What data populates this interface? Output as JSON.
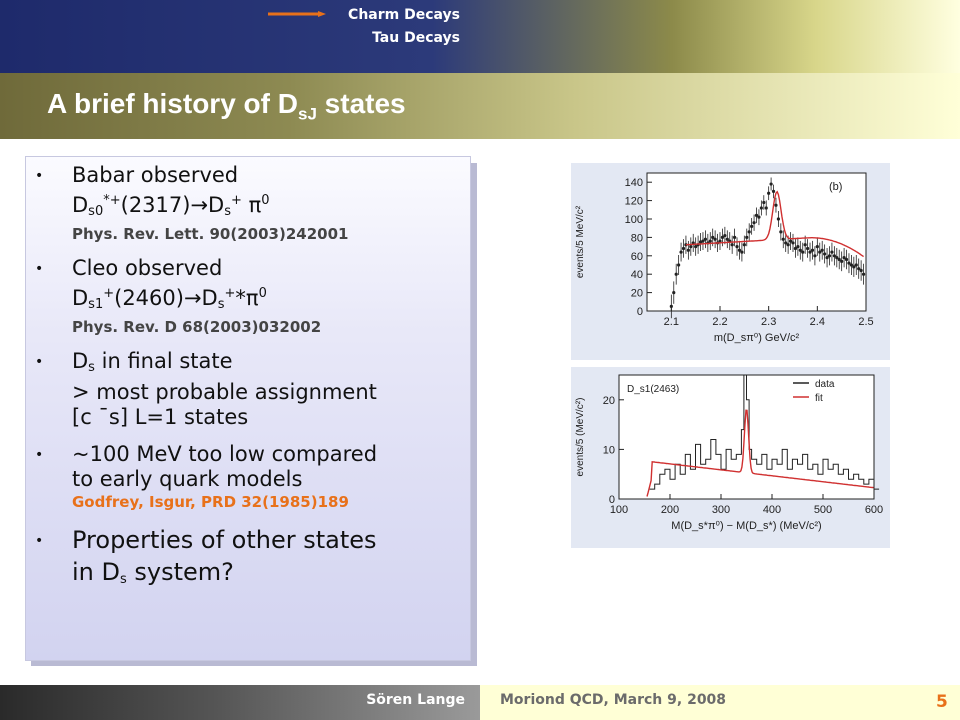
{
  "nav": {
    "items": [
      "Charm Decays",
      "Tau Decays"
    ],
    "arrow_color": "#e8711a"
  },
  "title": {
    "main": "A brief history of D",
    "sub": "sJ",
    "suffix": " states"
  },
  "bullets": [
    {
      "l1": "Babar observed",
      "l2": "D",
      "l2_sub": "s0",
      "l2_sup": "*+",
      "l2_tail": "(2317)→D",
      "l2_sub2": "s",
      "l2_sup2": "+",
      "l2_tail2": " π",
      "l2_sup3": "0",
      "ref": "Phys. Rev. Lett. 90(2003)242001"
    },
    {
      "l1": "Cleo observed",
      "l2": "D",
      "l2_sub": "s1",
      "l2_sup": "+",
      "l2_tail": "(2460)→D",
      "l2_sub2": "s",
      "l2_sup2": "+",
      "l2_tail2": "*π",
      "l2_sup3": "0",
      "ref": "Phys. Rev. D 68(2003)032002"
    },
    {
      "l1a": "D",
      "l1_sub": "s",
      "l1b": " in final state",
      "l2": "> most probable assignment",
      "l3": "[c ¯s]  L=1 states"
    },
    {
      "l1": "~100 MeV too low compared",
      "l2": "to early quark models",
      "ref": "Godfrey, Isgur, PRD 32(1985)189"
    },
    {
      "l1": "Properties of other states",
      "l2a": "in D",
      "l2_sub": "s",
      "l2b": " system?"
    }
  ],
  "chart_data": [
    {
      "type": "scatter",
      "panel_label": "(b)",
      "xlabel": "m(D_sπ⁰) GeV/c²",
      "ylabel": "events/5 MeV/c²",
      "xlim": [
        2.05,
        2.5
      ],
      "ylim": [
        0,
        150
      ],
      "xticks": [
        "2.1",
        "2.2",
        "2.3",
        "2.4",
        "2.5"
      ],
      "yticks": [
        "0",
        "20",
        "40",
        "60",
        "80",
        "100",
        "120",
        "140"
      ],
      "series": [
        {
          "x": [
            2.1,
            2.105,
            2.11,
            2.115,
            2.12,
            2.125,
            2.13,
            2.135,
            2.14,
            2.145,
            2.15,
            2.155,
            2.16,
            2.165,
            2.17,
            2.175,
            2.18,
            2.185,
            2.19,
            2.195,
            2.2,
            2.205,
            2.21,
            2.215,
            2.22,
            2.225,
            2.23,
            2.235,
            2.24,
            2.245,
            2.25,
            2.255,
            2.26,
            2.265,
            2.27,
            2.275,
            2.28,
            2.285,
            2.29,
            2.295,
            2.3,
            2.305,
            2.31,
            2.315,
            2.32,
            2.325,
            2.33,
            2.335,
            2.34,
            2.345,
            2.35,
            2.355,
            2.36,
            2.365,
            2.37,
            2.375,
            2.38,
            2.385,
            2.39,
            2.395,
            2.4,
            2.405,
            2.41,
            2.415,
            2.42,
            2.425,
            2.43,
            2.435,
            2.44,
            2.445,
            2.45,
            2.455,
            2.46,
            2.465,
            2.47,
            2.475,
            2.48,
            2.485,
            2.49,
            2.495
          ],
          "y": [
            5,
            20,
            40,
            50,
            64,
            68,
            72,
            66,
            70,
            74,
            70,
            72,
            75,
            76,
            78,
            74,
            76,
            80,
            78,
            74,
            76,
            80,
            82,
            78,
            76,
            72,
            80,
            70,
            66,
            64,
            72,
            80,
            86,
            92,
            96,
            104,
            102,
            112,
            118,
            112,
            128,
            138,
            130,
            115,
            100,
            86,
            78,
            74,
            72,
            76,
            74,
            68,
            70,
            66,
            64,
            72,
            68,
            64,
            66,
            60,
            70,
            64,
            66,
            62,
            58,
            60,
            64,
            60,
            58,
            56,
            54,
            58,
            56,
            52,
            50,
            48,
            50,
            46,
            44,
            40
          ]
        }
      ],
      "fit_name": ""
    },
    {
      "type": "line",
      "panel_label": "D_s1(2463)",
      "xlabel": "M(D_s*π⁰) − M(D_s*) (MeV/c²)",
      "ylabel": "events/5 (MeV/c²)",
      "xlim": [
        100,
        600
      ],
      "ylim": [
        0,
        25
      ],
      "xticks": [
        "100",
        "200",
        "300",
        "400",
        "500",
        "600"
      ],
      "yticks": [
        "0",
        "10",
        "20"
      ],
      "legend": [
        "data",
        "fit"
      ],
      "legend_colors": [
        "#222222",
        "#d03030"
      ],
      "legend_position": "top-right",
      "series": [
        {
          "name": "data",
          "x": [
            160,
            170,
            180,
            190,
            200,
            210,
            220,
            230,
            240,
            250,
            260,
            270,
            280,
            290,
            300,
            310,
            320,
            330,
            340,
            345,
            350,
            355,
            360,
            370,
            380,
            390,
            400,
            410,
            420,
            430,
            440,
            450,
            460,
            470,
            480,
            490,
            500,
            510,
            520,
            530,
            540,
            550,
            560,
            570,
            580,
            590,
            600
          ],
          "y": [
            2,
            3,
            5,
            6,
            4,
            7,
            5,
            9,
            6,
            11,
            7,
            8,
            12,
            9,
            6,
            10,
            8,
            9,
            14,
            25,
            20,
            10,
            8,
            7,
            9,
            6,
            8,
            7,
            10,
            6,
            8,
            7,
            9,
            6,
            7,
            5,
            8,
            6,
            7,
            5,
            6,
            4,
            5,
            4,
            3,
            4,
            2
          ]
        }
      ],
      "fit_name": "fit"
    }
  ],
  "footer": {
    "author": "Sören Lange",
    "conference": "Moriond QCD, March 9, 2008",
    "page": "5"
  }
}
